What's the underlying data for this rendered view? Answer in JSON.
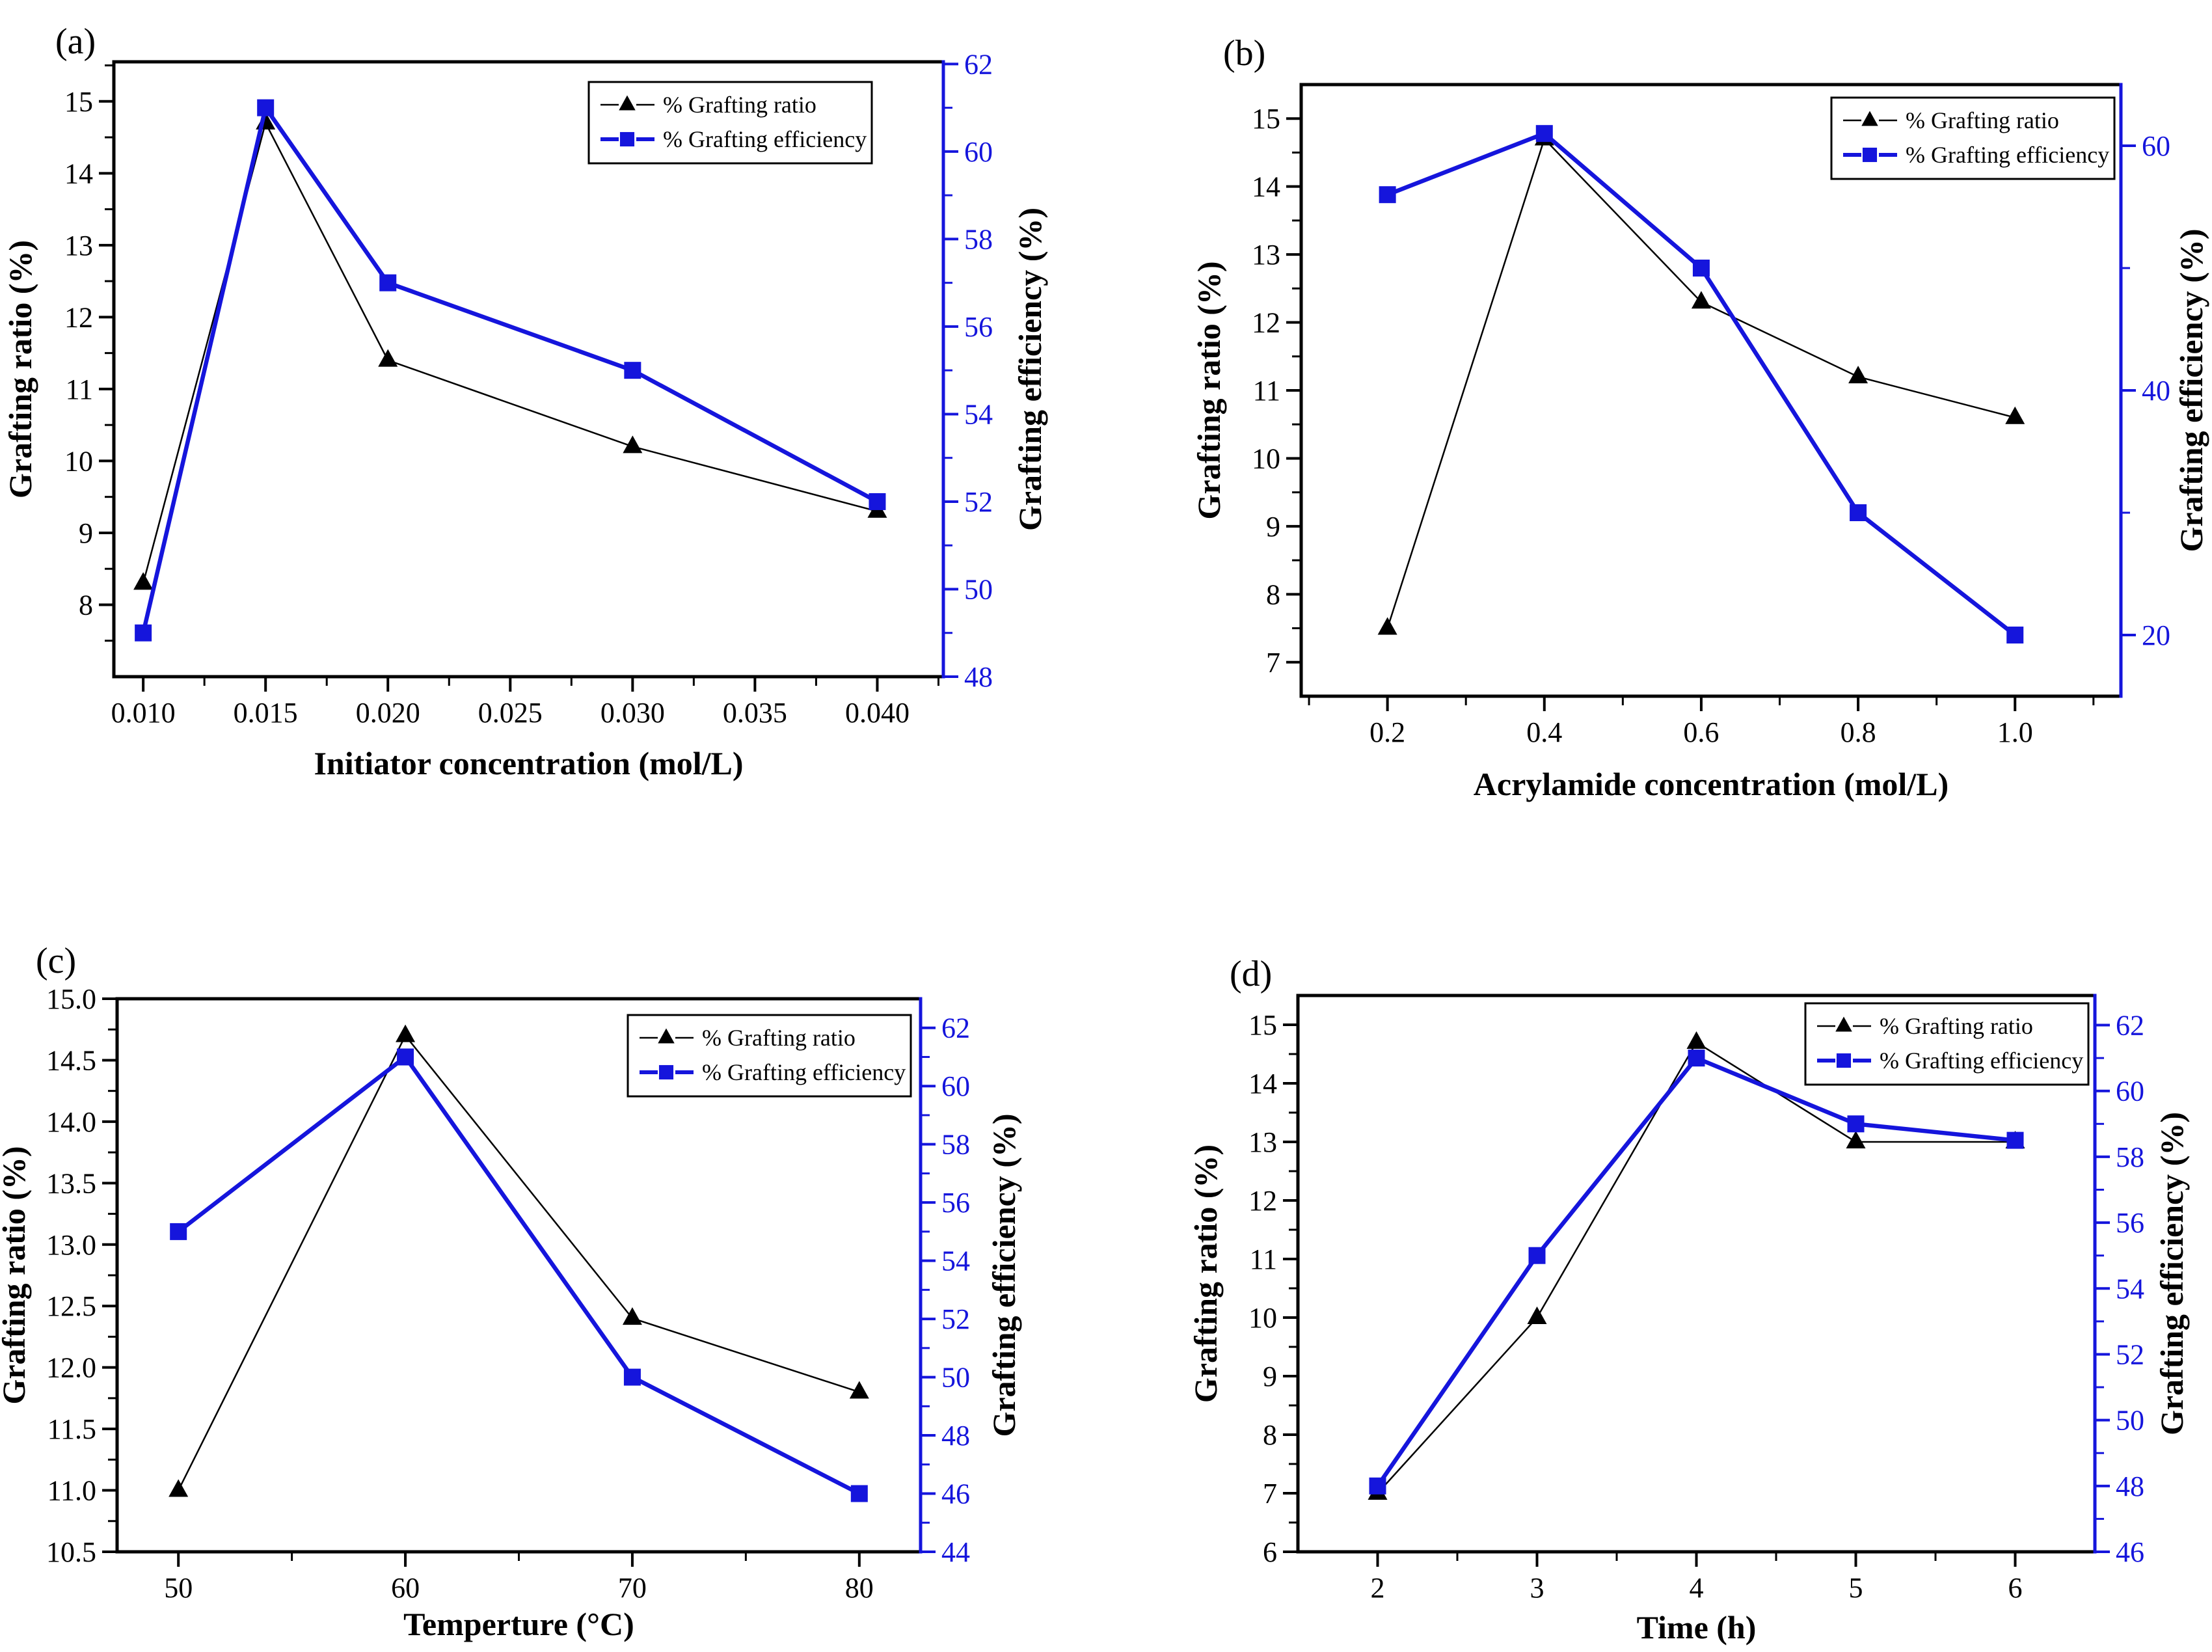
{
  "figure": {
    "colors": {
      "ratio": "#000000",
      "efficiency": "#1515DC"
    },
    "legend": {
      "ratio": "% Grafting ratio",
      "efficiency": "% Grafting efficiency"
    }
  },
  "chart_data": [
    {
      "type": "line",
      "key": "a",
      "panel_label": "(a)",
      "xlabel": "Initiator concentration (mol/L)",
      "ylabel_left": "Grafting ratio (%)",
      "ylabel_right": "Grafting efficiency (%)",
      "x_axis": {
        "range": [
          0.0088,
          0.0427
        ],
        "majors": [
          0.01,
          0.015,
          0.02,
          0.025,
          0.03,
          0.035,
          0.04
        ],
        "minor_step": 0.0025,
        "decimals": 3
      },
      "left_axis": {
        "range": [
          7.0,
          15.55
        ],
        "majors": [
          8,
          9,
          10,
          11,
          12,
          13,
          14,
          15
        ],
        "minor_step": 0.5,
        "decimals": 0
      },
      "right_axis": {
        "range": [
          48,
          62.05
        ],
        "majors": [
          48,
          50,
          52,
          54,
          56,
          58,
          60,
          62
        ],
        "minor_step": 1,
        "decimals": 0
      },
      "x": [
        0.01,
        0.015,
        0.02,
        0.03,
        0.04
      ],
      "series": [
        {
          "name": "% Grafting ratio",
          "axis": "left",
          "marker": "triangle",
          "values": [
            8.3,
            14.7,
            11.4,
            10.2,
            9.3
          ]
        },
        {
          "name": "% Grafting efficiency",
          "axis": "right",
          "marker": "square",
          "values": [
            49,
            61,
            57,
            55,
            52
          ]
        }
      ]
    },
    {
      "type": "line",
      "key": "b",
      "panel_label": "(b)",
      "xlabel": "Acrylamide concentration (mol/L)",
      "ylabel_left": "Grafting ratio (%)",
      "ylabel_right": "Grafting efficiency (%)",
      "x_axis": {
        "range": [
          0.09,
          1.135
        ],
        "majors": [
          0.2,
          0.4,
          0.6,
          0.8,
          1.0
        ],
        "minor_step": 0.1,
        "decimals": 1
      },
      "left_axis": {
        "range": [
          6.5,
          15.5
        ],
        "majors": [
          7,
          8,
          9,
          10,
          11,
          12,
          13,
          14,
          15
        ],
        "minor_step": 0.5,
        "decimals": 0
      },
      "right_axis": {
        "range": [
          15,
          65
        ],
        "majors": [
          20,
          40,
          60
        ],
        "minor_step": 10,
        "decimals": 0
      },
      "x": [
        0.2,
        0.4,
        0.6,
        0.8,
        1.0
      ],
      "series": [
        {
          "name": "% Grafting ratio",
          "axis": "left",
          "marker": "triangle",
          "values": [
            7.5,
            14.7,
            12.3,
            11.2,
            10.6
          ]
        },
        {
          "name": "% Grafting efficiency",
          "axis": "right",
          "marker": "square",
          "values": [
            56,
            61,
            50,
            30,
            20
          ]
        }
      ]
    },
    {
      "type": "line",
      "key": "c",
      "panel_label": "(c)",
      "xlabel": "Temperture (°C)",
      "ylabel_left": "Grafting ratio (%)",
      "ylabel_right": "Grafting efficiency (%)",
      "x_axis": {
        "range": [
          47.3,
          82.7
        ],
        "majors": [
          50,
          60,
          70,
          80
        ],
        "minor_step": 5,
        "decimals": 0
      },
      "left_axis": {
        "range": [
          10.5,
          15.0
        ],
        "majors": [
          10.5,
          11.0,
          11.5,
          12.0,
          12.5,
          13.0,
          13.5,
          14.0,
          14.5,
          15.0
        ],
        "minor_step": 0.25,
        "decimals": 1
      },
      "right_axis": {
        "range": [
          44,
          63
        ],
        "majors": [
          44,
          46,
          48,
          50,
          52,
          54,
          56,
          58,
          60,
          62
        ],
        "minor_step": 1,
        "decimals": 0
      },
      "x": [
        50,
        60,
        70,
        80
      ],
      "series": [
        {
          "name": "% Grafting ratio",
          "axis": "left",
          "marker": "triangle",
          "values": [
            11.0,
            14.7,
            12.4,
            11.8
          ]
        },
        {
          "name": "% Grafting efficiency",
          "axis": "right",
          "marker": "square",
          "values": [
            55,
            61,
            50,
            46
          ]
        }
      ]
    },
    {
      "type": "line",
      "key": "d",
      "panel_label": "(d)",
      "xlabel": "Time (h)",
      "ylabel_left": "Grafting ratio (%)",
      "ylabel_right": "Grafting efficiency (%)",
      "x_axis": {
        "range": [
          1.5,
          6.5
        ],
        "majors": [
          2,
          3,
          4,
          5,
          6
        ],
        "minor_step": 0.5,
        "decimals": 0
      },
      "left_axis": {
        "range": [
          6,
          15.5
        ],
        "majors": [
          6,
          7,
          8,
          9,
          10,
          11,
          12,
          13,
          14,
          15
        ],
        "minor_step": 0.5,
        "decimals": 0
      },
      "right_axis": {
        "range": [
          46,
          62.9
        ],
        "majors": [
          46,
          48,
          50,
          52,
          54,
          56,
          58,
          60,
          62
        ],
        "minor_step": 1,
        "decimals": 0
      },
      "x": [
        2,
        3,
        4,
        5,
        6
      ],
      "series": [
        {
          "name": "% Grafting ratio",
          "axis": "left",
          "marker": "triangle",
          "values": [
            7.0,
            10.0,
            14.7,
            13.0,
            13.0
          ]
        },
        {
          "name": "% Grafting efficiency",
          "axis": "right",
          "marker": "square",
          "values": [
            48,
            55,
            61,
            59,
            58.5
          ]
        }
      ]
    }
  ]
}
